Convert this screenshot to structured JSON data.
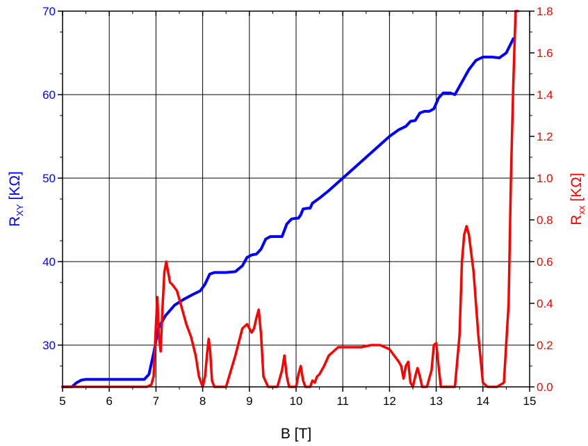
{
  "chart_data": {
    "type": "line",
    "x_axis": {
      "label": "B [T]",
      "range": [
        5,
        15
      ],
      "ticks": [
        5,
        6,
        7,
        8,
        9,
        10,
        11,
        12,
        13,
        14,
        15
      ],
      "tick_labels": [
        "5",
        "6",
        "7",
        "8",
        "9",
        "10",
        "11",
        "12",
        "13",
        "14",
        "15"
      ]
    },
    "y_left": {
      "label_main": "R",
      "label_sub": "XY",
      "label_unit": " [KΩ]",
      "range": [
        25,
        70
      ],
      "ticks": [
        30,
        40,
        50,
        60,
        70
      ],
      "tick_labels": [
        "30",
        "40",
        "50",
        "60",
        "70"
      ],
      "color": "#0000ff"
    },
    "y_right": {
      "label_main": "R",
      "label_sub": "xx",
      "label_unit": " [KΩ]",
      "range": [
        0,
        1.8
      ],
      "ticks": [
        0,
        0.2,
        0.4,
        0.6,
        0.8,
        1.0,
        1.2,
        1.4,
        1.6,
        1.8
      ],
      "tick_labels": [
        "0.0",
        "0.2",
        "0.4",
        "0.6",
        "0.8",
        "1.0",
        "1.2",
        "1.4",
        "1.6",
        "1.8"
      ],
      "color": "#ff0000"
    },
    "grid": true,
    "series": [
      {
        "axis": "left",
        "color": "#0000ff",
        "x": [
          5.0,
          5.2,
          5.3,
          5.4,
          5.5,
          6.0,
          6.5,
          6.75,
          6.85,
          6.95,
          7.05,
          7.2,
          7.4,
          7.6,
          7.8,
          7.95,
          8.05,
          8.15,
          8.25,
          8.5,
          8.7,
          8.85,
          8.95,
          9.05,
          9.15,
          9.25,
          9.35,
          9.45,
          9.7,
          9.8,
          9.9,
          10.0,
          10.05,
          10.1,
          10.15,
          10.25,
          10.3,
          10.35,
          10.4,
          10.5,
          10.7,
          11.0,
          11.5,
          12.0,
          12.2,
          12.35,
          12.45,
          12.55,
          12.65,
          12.75,
          12.85,
          12.95,
          13.05,
          13.15,
          13.3,
          13.4,
          13.5,
          13.7,
          13.85,
          14.0,
          14.2,
          14.35,
          14.5,
          14.65
        ],
        "y": [
          25.0,
          25.0,
          25.5,
          25.8,
          25.9,
          25.9,
          25.9,
          25.9,
          26.5,
          29.0,
          32.0,
          33.5,
          34.8,
          35.5,
          36.1,
          36.5,
          37.3,
          38.5,
          38.7,
          38.7,
          38.8,
          39.5,
          40.5,
          40.8,
          40.9,
          41.5,
          42.7,
          43.0,
          43.0,
          44.5,
          45.1,
          45.2,
          45.2,
          45.6,
          46.3,
          46.4,
          46.4,
          47.0,
          47.2,
          47.6,
          48.5,
          50.0,
          52.5,
          55.0,
          55.8,
          56.2,
          56.8,
          56.9,
          57.8,
          58.0,
          58.0,
          58.3,
          59.6,
          60.2,
          60.2,
          60.0,
          61.0,
          63.0,
          64.1,
          64.5,
          64.5,
          64.4,
          65.0,
          66.7
        ]
      },
      {
        "axis": "right",
        "color": "#ff0000",
        "x": [
          5.0,
          5.5,
          6.0,
          6.5,
          6.8,
          6.9,
          6.95,
          7.0,
          7.03,
          7.06,
          7.1,
          7.14,
          7.18,
          7.22,
          7.26,
          7.3,
          7.35,
          7.45,
          7.55,
          7.65,
          7.75,
          7.85,
          7.92,
          8.0,
          8.05,
          8.1,
          8.13,
          8.16,
          8.2,
          8.25,
          8.3,
          8.5,
          8.7,
          8.85,
          8.95,
          9.05,
          9.1,
          9.15,
          9.2,
          9.25,
          9.3,
          9.4,
          9.6,
          9.7,
          9.75,
          9.8,
          9.85,
          10.0,
          10.05,
          10.1,
          10.15,
          10.2,
          10.3,
          10.35,
          10.4,
          10.45,
          10.5,
          10.6,
          10.7,
          10.8,
          10.9,
          11.0,
          11.2,
          11.4,
          11.6,
          11.8,
          12.0,
          12.1,
          12.2,
          12.25,
          12.3,
          12.35,
          12.4,
          12.45,
          12.5,
          12.55,
          12.6,
          12.65,
          12.7,
          12.8,
          12.9,
          12.95,
          13.0,
          13.05,
          13.1,
          13.2,
          13.4,
          13.5,
          13.55,
          13.6,
          13.65,
          13.7,
          13.8,
          13.9,
          14.0,
          14.1,
          14.3,
          14.45,
          14.55,
          14.6,
          14.65,
          14.7,
          14.75
        ],
        "y": [
          0.0,
          0.0,
          0.0,
          0.0,
          0.0,
          0.01,
          0.05,
          0.3,
          0.43,
          0.25,
          0.17,
          0.38,
          0.55,
          0.6,
          0.55,
          0.5,
          0.49,
          0.46,
          0.38,
          0.3,
          0.24,
          0.15,
          0.05,
          0.0,
          0.05,
          0.17,
          0.23,
          0.17,
          0.03,
          0.0,
          0.0,
          0.0,
          0.15,
          0.28,
          0.3,
          0.26,
          0.28,
          0.33,
          0.37,
          0.25,
          0.05,
          0.0,
          0.0,
          0.08,
          0.15,
          0.05,
          0.0,
          0.0,
          0.06,
          0.1,
          0.03,
          0.0,
          0.0,
          0.03,
          0.02,
          0.05,
          0.06,
          0.1,
          0.15,
          0.17,
          0.19,
          0.19,
          0.19,
          0.19,
          0.2,
          0.2,
          0.18,
          0.15,
          0.12,
          0.1,
          0.04,
          0.1,
          0.12,
          0.02,
          0.0,
          0.05,
          0.09,
          0.05,
          0.0,
          0.0,
          0.08,
          0.2,
          0.21,
          0.1,
          0.0,
          0.0,
          0.0,
          0.25,
          0.6,
          0.73,
          0.77,
          0.73,
          0.55,
          0.25,
          0.02,
          0.0,
          0.0,
          0.02,
          0.4,
          1.0,
          1.45,
          1.8,
          1.8
        ]
      }
    ]
  }
}
